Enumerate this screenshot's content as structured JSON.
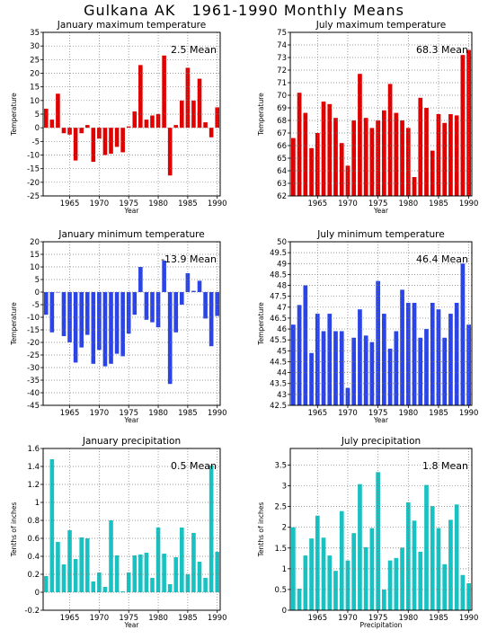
{
  "title": "Gulkana AK   1961-1990 Monthly Means",
  "colors": {
    "red": "#e00000",
    "blue": "#2a44e8",
    "teal": "#19c2c2",
    "grid": "#777777"
  },
  "chart_data": [
    {
      "type": "bar",
      "title": "January maximum temperature",
      "mean_label": "2.5 Mean",
      "xlabel": "Year",
      "ylabel": "Temperature",
      "color": "#e00000",
      "ylim": [
        -25,
        35
      ],
      "yticks": [
        "-25",
        "-20",
        "-15",
        "-10",
        "-5",
        "0",
        "5",
        "10",
        "15",
        "20",
        "25",
        "30",
        "35"
      ],
      "xticks": [
        "1965",
        "1970",
        "1975",
        "1980",
        "1985",
        "1990"
      ],
      "x": [
        1961,
        1962,
        1963,
        1964,
        1965,
        1966,
        1967,
        1968,
        1969,
        1970,
        1971,
        1972,
        1973,
        1974,
        1975,
        1976,
        1977,
        1978,
        1979,
        1980,
        1981,
        1982,
        1983,
        1984,
        1985,
        1986,
        1987,
        1988,
        1989,
        1990
      ],
      "values": [
        7,
        3,
        12.5,
        -2,
        -2.5,
        -12,
        -2,
        1,
        -12.5,
        -4,
        -10,
        -9.5,
        -7,
        -9,
        0.5,
        6,
        23,
        3,
        4.5,
        5,
        26.5,
        -17.5,
        1,
        10,
        22,
        10,
        18,
        2,
        -3.5,
        7.5
      ]
    },
    {
      "type": "bar",
      "title": "July maximum temperature",
      "mean_label": "68.3 Mean",
      "xlabel": "Year",
      "ylabel": "Temperature",
      "color": "#e00000",
      "ylim": [
        62,
        75
      ],
      "yticks": [
        "62",
        "63",
        "64",
        "65",
        "66",
        "67",
        "68",
        "69",
        "70",
        "71",
        "72",
        "73",
        "74",
        "75"
      ],
      "xticks": [
        "1965",
        "1970",
        "1975",
        "1980",
        "1985",
        "1990"
      ],
      "x": [
        1961,
        1962,
        1963,
        1964,
        1965,
        1966,
        1967,
        1968,
        1969,
        1970,
        1971,
        1972,
        1973,
        1974,
        1975,
        1976,
        1977,
        1978,
        1979,
        1980,
        1981,
        1982,
        1983,
        1984,
        1985,
        1986,
        1987,
        1988,
        1989,
        1990
      ],
      "values": [
        66.6,
        70.2,
        68.6,
        65.8,
        67,
        69.5,
        69.3,
        68.2,
        66.2,
        64.4,
        68,
        71.7,
        68.2,
        67.4,
        68,
        68.8,
        70.9,
        68.6,
        68,
        67.4,
        63.5,
        69.8,
        69,
        65.6,
        68.5,
        67.8,
        68.5,
        68.4,
        73.2,
        73.6
      ]
    },
    {
      "type": "bar",
      "title": "January minimum temperature",
      "mean_label": "-13.9  Mean",
      "xlabel": "Year",
      "ylabel": "Temperature",
      "color": "#2a44e8",
      "ylim": [
        -45,
        20
      ],
      "yticks": [
        "-45",
        "-40",
        "-35",
        "-30",
        "-25",
        "-20",
        "-15",
        "-10",
        "-5",
        "0",
        "5",
        "10",
        "15",
        "20"
      ],
      "xticks": [
        "1965",
        "1970",
        "1975",
        "1980",
        "1985",
        "1990"
      ],
      "x": [
        1961,
        1962,
        1963,
        1964,
        1965,
        1966,
        1967,
        1968,
        1969,
        1970,
        1971,
        1972,
        1973,
        1974,
        1975,
        1976,
        1977,
        1978,
        1979,
        1980,
        1981,
        1982,
        1983,
        1984,
        1985,
        1986,
        1987,
        1988,
        1989,
        1990
      ],
      "values": [
        -9,
        -16,
        0,
        -17.5,
        -20,
        -28,
        -22,
        -17,
        -28.5,
        -23,
        -29.5,
        -28.5,
        -24.5,
        -25.5,
        -16.5,
        -9,
        10,
        -11,
        -12,
        -14,
        12.5,
        -36.5,
        -16,
        -5,
        7.5,
        0.5,
        4.5,
        -10.5,
        -21.5,
        -9.5
      ]
    },
    {
      "type": "bar",
      "title": "July minimum temperature",
      "mean_label": "46.4  Mean",
      "xlabel": "Year",
      "ylabel": "Temperature",
      "color": "#2a44e8",
      "ylim": [
        42.5,
        50
      ],
      "yticks": [
        "42.5",
        "43",
        "43.5",
        "44",
        "44.5",
        "45",
        "45.5",
        "46",
        "46.5",
        "47",
        "47.5",
        "48",
        "48.5",
        "49",
        "49.5",
        "50"
      ],
      "xticks": [
        "1965",
        "1970",
        "1975",
        "1980",
        "1985",
        "1990"
      ],
      "x": [
        1961,
        1962,
        1963,
        1964,
        1965,
        1966,
        1967,
        1968,
        1969,
        1970,
        1971,
        1972,
        1973,
        1974,
        1975,
        1976,
        1977,
        1978,
        1979,
        1980,
        1981,
        1982,
        1983,
        1984,
        1985,
        1986,
        1987,
        1988,
        1989,
        1990
      ],
      "values": [
        46.2,
        47.1,
        48,
        44.9,
        46.7,
        45.9,
        46.7,
        45.9,
        45.9,
        43.3,
        45.6,
        46.9,
        45.7,
        45.4,
        48.2,
        46.7,
        45.1,
        45.9,
        47.8,
        47.2,
        47.2,
        45.6,
        46,
        47.2,
        46.9,
        45.6,
        46.7,
        47.2,
        49,
        46.2
      ]
    },
    {
      "type": "bar",
      "title": "January precipitation",
      "mean_label": "0.5  Mean",
      "xlabel": "Year",
      "ylabel": "Tenths of inches",
      "color": "#19c2c2",
      "ylim": [
        -0.2,
        1.6
      ],
      "yticks": [
        "-0.2",
        "0",
        "0.2",
        "0.4",
        "0.6",
        "0.8",
        "1",
        "1.2",
        "1.4",
        "1.6"
      ],
      "xticks": [
        "1965",
        "1970",
        "1975",
        "1980",
        "1985",
        "1990"
      ],
      "x": [
        1961,
        1962,
        1963,
        1964,
        1965,
        1966,
        1967,
        1968,
        1969,
        1970,
        1971,
        1972,
        1973,
        1974,
        1975,
        1976,
        1977,
        1978,
        1979,
        1980,
        1981,
        1982,
        1983,
        1984,
        1985,
        1986,
        1987,
        1988,
        1989,
        1990
      ],
      "values": [
        0.18,
        1.48,
        0.56,
        0.31,
        0.69,
        0.37,
        0.61,
        0.6,
        0.12,
        0.22,
        0.06,
        0.8,
        0.41,
        0.01,
        0.22,
        0.41,
        0.42,
        0.44,
        0.16,
        0.72,
        0.43,
        0.09,
        0.39,
        0.72,
        0.2,
        0.66,
        0.34,
        0.16,
        1.41,
        0.45
      ]
    },
    {
      "type": "bar",
      "title": "July precipitation",
      "mean_label": "1.8  Mean",
      "xlabel": "Precipitation",
      "ylabel": "Tenths of inches",
      "color": "#19c2c2",
      "ylim": [
        0,
        3.9
      ],
      "yticks": [
        "0",
        "0.5",
        "1",
        "1.5",
        "2",
        "2.5",
        "3",
        "3.5"
      ],
      "xticks": [
        "1965",
        "1970",
        "1975",
        "1980",
        "1985",
        "1990"
      ],
      "x": [
        1961,
        1962,
        1963,
        1964,
        1965,
        1966,
        1967,
        1968,
        1969,
        1970,
        1971,
        1972,
        1973,
        1974,
        1975,
        1976,
        1977,
        1978,
        1979,
        1980,
        1981,
        1982,
        1983,
        1984,
        1985,
        1986,
        1987,
        1988,
        1989,
        1990
      ],
      "values": [
        2,
        0.52,
        1.32,
        1.73,
        2.28,
        1.75,
        1.32,
        0.95,
        2.39,
        1.2,
        1.86,
        3.04,
        1.52,
        1.98,
        3.33,
        0.5,
        1.2,
        1.26,
        1.51,
        2.6,
        2.16,
        1.41,
        3.02,
        2.51,
        1.98,
        1.11,
        2.18,
        2.55,
        0.85,
        0.65
      ]
    }
  ]
}
